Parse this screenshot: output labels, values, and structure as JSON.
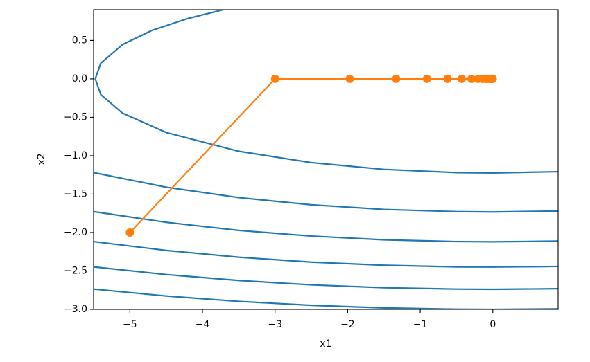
{
  "chart_data": {
    "type": "contour",
    "xlabel": "x1",
    "ylabel": "x2",
    "xlim": [
      -5.5,
      0.9
    ],
    "ylim": [
      -3.0,
      0.9
    ],
    "xticks": [
      {
        "value": -5,
        "label": "−5"
      },
      {
        "value": -4,
        "label": "−4"
      },
      {
        "value": -3,
        "label": "−3"
      },
      {
        "value": -2,
        "label": "−2"
      },
      {
        "value": -1,
        "label": "−1"
      },
      0
    ],
    "yticks": [
      {
        "value": -3.0,
        "label": "−3.0"
      },
      {
        "value": -2.5,
        "label": "−2.5"
      },
      {
        "value": -2.0,
        "label": "−2.0"
      },
      {
        "value": -1.5,
        "label": "−1.5"
      },
      {
        "value": -1.0,
        "label": "−1.0"
      },
      {
        "value": -0.5,
        "label": "−0.5"
      },
      {
        "value": 0.0,
        "label": "0.0"
      },
      {
        "value": 0.5,
        "label": "0.5"
      }
    ],
    "series": [
      {
        "color": "#1f77b4",
        "x": [
          -3.71,
          -4.2,
          -4.7,
          -5.1,
          -5.4,
          -5.477,
          -5.4,
          -5.1,
          -4.5,
          -3.5,
          -2.5,
          -1.5,
          -0.5,
          0,
          0.9
        ],
        "values": [
          0.901,
          0.786,
          0.629,
          0.447,
          0.205,
          0,
          -0.205,
          -0.447,
          -0.698,
          -0.942,
          -1.09,
          -1.178,
          -1.22,
          -1.225,
          -1.208
        ]
      },
      {
        "color": "#1f77b4",
        "x": [
          -5.5,
          -4.5,
          -3.5,
          -2.5,
          -1.5,
          -0.5,
          0,
          0.9
        ],
        "values": [
          -1.22,
          -1.41,
          -1.545,
          -1.639,
          -1.699,
          -1.728,
          -1.732,
          -1.72
        ]
      },
      {
        "color": "#1f77b4",
        "x": [
          -5.5,
          -4.5,
          -3.5,
          -2.5,
          -1.5,
          -0.5,
          0,
          0.9
        ],
        "values": [
          -1.728,
          -1.867,
          -1.972,
          -2.046,
          -2.095,
          -2.118,
          -2.121,
          -2.112
        ]
      },
      {
        "color": "#1f77b4",
        "x": [
          -5.5,
          -4.5,
          -3.5,
          -2.5,
          -1.5,
          -0.5,
          0,
          0.9
        ],
        "values": [
          -2.118,
          -2.233,
          -2.321,
          -2.385,
          -2.426,
          -2.447,
          -2.449,
          -2.441
        ]
      },
      {
        "color": "#1f77b4",
        "x": [
          -5.5,
          -4.5,
          -3.5,
          -2.5,
          -1.5,
          -0.5,
          0,
          0.9
        ],
        "values": [
          -2.447,
          -2.547,
          -2.624,
          -2.681,
          -2.718,
          -2.736,
          -2.739,
          -2.731
        ]
      },
      {
        "color": "#1f77b4",
        "x": [
          -5.5,
          -4.5,
          -3.5,
          -2.5,
          -1.5,
          -0.5,
          0,
          0.9
        ],
        "values": [
          -2.736,
          -2.826,
          -2.896,
          -2.947,
          -2.981,
          -2.998,
          -3.0,
          -2.993
        ]
      },
      {
        "color": "#ff7f0e",
        "marker": "o",
        "x": [
          -5,
          -3,
          -1.971,
          -1.331,
          -0.908,
          -0.623,
          -0.428,
          -0.294,
          -0.203,
          -0.139,
          -0.096,
          -0.066,
          -0.046,
          -0.031,
          -0.022,
          -0.015,
          -0.01,
          -0.007,
          -0.005,
          -0.003,
          -0.002
        ],
        "values": [
          -2,
          0,
          0,
          0,
          0,
          0,
          0,
          0,
          0,
          0,
          0,
          0,
          0,
          0,
          0,
          0,
          0,
          0,
          0,
          0,
          0
        ]
      }
    ]
  }
}
